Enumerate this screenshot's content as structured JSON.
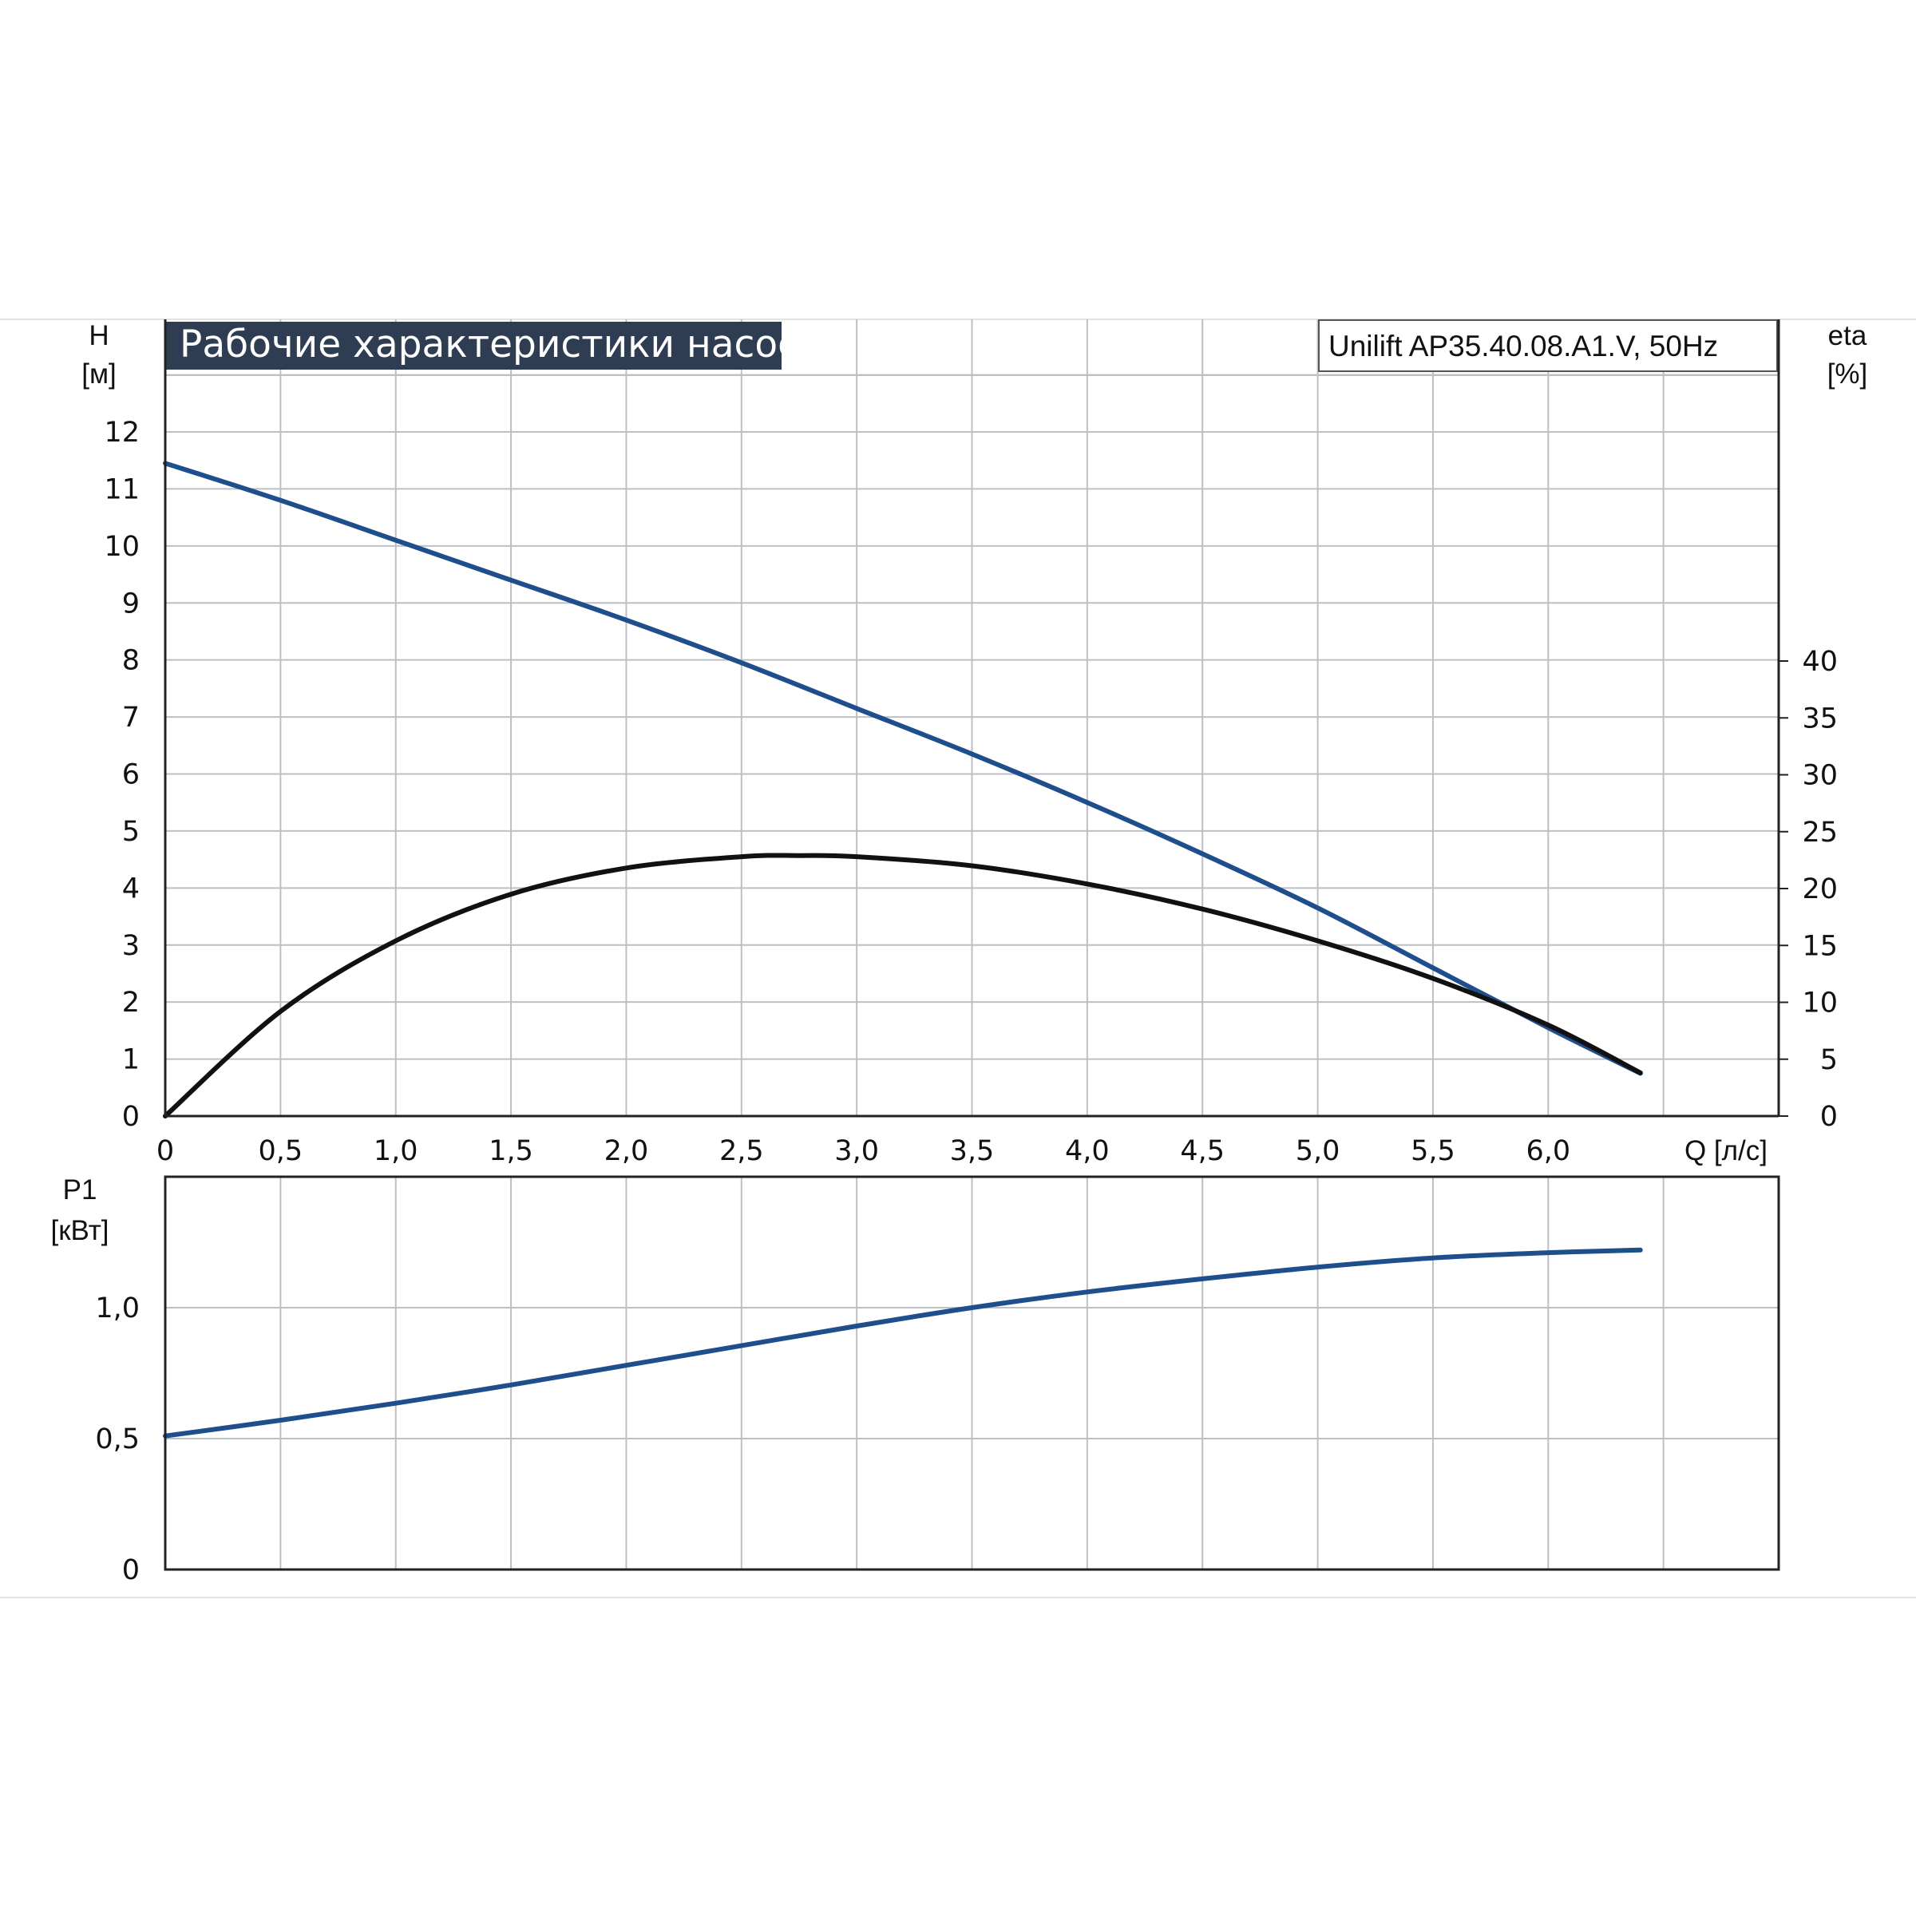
{
  "chart_data": [
    {
      "type": "line",
      "title": "Рабочие характеристики насоса",
      "model": "Unilift AP35.40.08.A1.V, 50Hz",
      "xlabel": "Q [л/с]",
      "ylabel": "H",
      "ylabel_unit": "[м]",
      "y2label": "eta",
      "y2label_unit": "[%]",
      "xlim": [
        0,
        7.0
      ],
      "ylim": [
        0,
        13
      ],
      "y2lim": [
        0,
        40
      ],
      "x_ticks": [
        "0",
        "0,5",
        "1,0",
        "1,5",
        "2,0",
        "2,5",
        "3,0",
        "3,5",
        "4,0",
        "4,5",
        "5,0",
        "5,5",
        "6,0"
      ],
      "y_ticks": [
        "0",
        "1",
        "2",
        "3",
        "4",
        "5",
        "6",
        "7",
        "8",
        "9",
        "10",
        "11",
        "12"
      ],
      "y2_ticks": [
        "0",
        "5",
        "10",
        "15",
        "20",
        "25",
        "30",
        "35",
        "40"
      ],
      "grid": true,
      "series": [
        {
          "axis": "left",
          "color": "#1f4e8c",
          "x": [
            0,
            0.5,
            1.0,
            1.5,
            2.0,
            2.5,
            3.0,
            3.5,
            4.0,
            4.5,
            5.0,
            5.5,
            6.0,
            6.4
          ],
          "values": [
            11.45,
            10.8,
            10.1,
            9.4,
            8.7,
            7.95,
            7.15,
            6.35,
            5.5,
            4.6,
            3.65,
            2.6,
            1.55,
            0.75
          ]
        },
        {
          "axis": "right",
          "color": "#111111",
          "x": [
            0,
            0.5,
            1.0,
            1.5,
            2.0,
            2.5,
            2.75,
            3.0,
            3.5,
            4.0,
            4.5,
            5.0,
            5.5,
            6.0,
            6.4
          ],
          "values": [
            0,
            9.2,
            15.4,
            19.5,
            21.8,
            22.8,
            22.9,
            22.8,
            22.0,
            20.4,
            18.2,
            15.4,
            12.1,
            8.0,
            3.8
          ]
        }
      ]
    },
    {
      "type": "line",
      "ylabel": "P1",
      "ylabel_unit": "[кВт]",
      "xlim": [
        0,
        7.0
      ],
      "ylim": [
        0,
        1.5
      ],
      "y_ticks": [
        "0",
        "0,5",
        "1,0"
      ],
      "grid": true,
      "series": [
        {
          "color": "#1f4e8c",
          "x": [
            0,
            0.5,
            1.0,
            1.5,
            2.0,
            2.5,
            3.0,
            3.5,
            4.0,
            4.5,
            5.0,
            5.5,
            6.0,
            6.4
          ],
          "values": [
            0.51,
            0.57,
            0.635,
            0.705,
            0.78,
            0.855,
            0.93,
            1.0,
            1.06,
            1.11,
            1.155,
            1.19,
            1.21,
            1.22
          ]
        }
      ]
    }
  ]
}
